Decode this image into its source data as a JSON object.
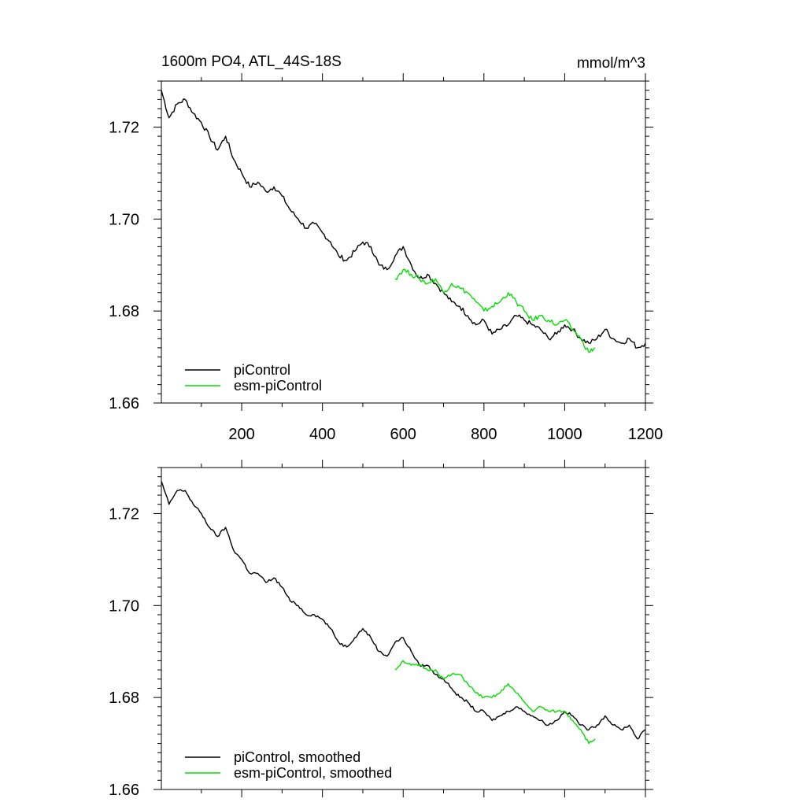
{
  "chart_data": [
    {
      "type": "line",
      "title_left": "1600m PO4, ATL_44S-18S",
      "title_right": "mmol/m^3",
      "xlabel": "",
      "ylabel": "",
      "xlim": [
        1,
        1200
      ],
      "ylim": [
        1.66,
        1.73
      ],
      "x_ticks": [
        200,
        400,
        600,
        800,
        1000,
        1200
      ],
      "y_ticks": [
        1.66,
        1.68,
        1.7,
        1.72
      ],
      "y_tick_labels": [
        "1.66",
        "1.68",
        "1.70",
        "1.72"
      ],
      "x_tick_labels": [
        "200",
        "400",
        "600",
        "800",
        "1000",
        "1200"
      ],
      "legend_position": "bottom-left",
      "series": [
        {
          "name": "piControl",
          "color": "#000000",
          "x": [
            1,
            20,
            40,
            60,
            80,
            100,
            120,
            140,
            160,
            180,
            200,
            220,
            240,
            260,
            280,
            300,
            320,
            340,
            360,
            380,
            400,
            420,
            440,
            460,
            480,
            500,
            520,
            540,
            560,
            580,
            600,
            620,
            640,
            660,
            680,
            700,
            720,
            740,
            760,
            780,
            800,
            820,
            840,
            860,
            880,
            900,
            920,
            940,
            960,
            980,
            1000,
            1020,
            1040,
            1060,
            1080,
            1100,
            1120,
            1140,
            1160,
            1180,
            1200
          ],
          "values": [
            1.728,
            1.722,
            1.725,
            1.726,
            1.723,
            1.721,
            1.718,
            1.715,
            1.718,
            1.713,
            1.71,
            1.707,
            1.708,
            1.706,
            1.707,
            1.705,
            1.702,
            1.7,
            1.698,
            1.699,
            1.697,
            1.695,
            1.692,
            1.691,
            1.693,
            1.695,
            1.694,
            1.69,
            1.689,
            1.692,
            1.694,
            1.69,
            1.687,
            1.688,
            1.686,
            1.684,
            1.682,
            1.681,
            1.679,
            1.677,
            1.678,
            1.675,
            1.676,
            1.677,
            1.679,
            1.678,
            1.677,
            1.676,
            1.674,
            1.675,
            1.677,
            1.676,
            1.674,
            1.673,
            1.674,
            1.676,
            1.674,
            1.673,
            1.674,
            1.672,
            1.673
          ]
        },
        {
          "name": "esm-piControl",
          "color": "#00e000",
          "x": [
            580,
            600,
            620,
            640,
            660,
            680,
            700,
            720,
            740,
            760,
            780,
            800,
            820,
            840,
            860,
            880,
            900,
            920,
            940,
            960,
            980,
            1000,
            1020,
            1040,
            1060,
            1075
          ],
          "values": [
            1.687,
            1.689,
            1.688,
            1.687,
            1.686,
            1.687,
            1.684,
            1.686,
            1.685,
            1.684,
            1.682,
            1.68,
            1.681,
            1.682,
            1.684,
            1.682,
            1.68,
            1.678,
            1.679,
            1.678,
            1.677,
            1.678,
            1.676,
            1.674,
            1.671,
            1.672
          ]
        }
      ]
    },
    {
      "type": "line",
      "title_left": "",
      "title_right": "",
      "xlabel": "",
      "ylabel": "",
      "xlim": [
        1,
        1200
      ],
      "ylim": [
        1.66,
        1.73
      ],
      "x_ticks": [
        200,
        400,
        600,
        800,
        1000,
        1200
      ],
      "y_ticks": [
        1.66,
        1.68,
        1.7,
        1.72
      ],
      "y_tick_labels": [
        "1.66",
        "1.68",
        "1.70",
        "1.72"
      ],
      "x_tick_labels": [],
      "legend_position": "bottom-left",
      "series": [
        {
          "name": "piControl, smoothed",
          "color": "#000000",
          "x": [
            1,
            20,
            40,
            60,
            80,
            100,
            120,
            140,
            160,
            180,
            200,
            220,
            240,
            260,
            280,
            300,
            320,
            340,
            360,
            380,
            400,
            420,
            440,
            460,
            480,
            500,
            520,
            540,
            560,
            580,
            600,
            620,
            640,
            660,
            680,
            700,
            720,
            740,
            760,
            780,
            800,
            820,
            840,
            860,
            880,
            900,
            920,
            940,
            960,
            980,
            1000,
            1020,
            1040,
            1060,
            1080,
            1100,
            1120,
            1140,
            1160,
            1180,
            1200
          ],
          "values": [
            1.727,
            1.722,
            1.725,
            1.725,
            1.722,
            1.72,
            1.717,
            1.715,
            1.717,
            1.712,
            1.71,
            1.707,
            1.707,
            1.705,
            1.706,
            1.704,
            1.701,
            1.7,
            1.698,
            1.698,
            1.697,
            1.695,
            1.692,
            1.691,
            1.693,
            1.695,
            1.693,
            1.69,
            1.689,
            1.692,
            1.693,
            1.69,
            1.687,
            1.687,
            1.685,
            1.684,
            1.682,
            1.68,
            1.679,
            1.677,
            1.677,
            1.675,
            1.676,
            1.677,
            1.678,
            1.677,
            1.676,
            1.675,
            1.674,
            1.675,
            1.677,
            1.676,
            1.674,
            1.673,
            1.674,
            1.676,
            1.674,
            1.673,
            1.674,
            1.671,
            1.673
          ]
        },
        {
          "name": "esm-piControl, smoothed",
          "color": "#00e000",
          "x": [
            580,
            600,
            620,
            640,
            660,
            680,
            700,
            720,
            740,
            760,
            780,
            800,
            820,
            840,
            860,
            880,
            900,
            920,
            940,
            960,
            980,
            1000,
            1020,
            1040,
            1060,
            1075
          ],
          "values": [
            1.686,
            1.688,
            1.687,
            1.687,
            1.686,
            1.686,
            1.684,
            1.685,
            1.685,
            1.683,
            1.681,
            1.68,
            1.68,
            1.681,
            1.683,
            1.681,
            1.679,
            1.677,
            1.678,
            1.677,
            1.677,
            1.677,
            1.675,
            1.673,
            1.67,
            1.671
          ]
        }
      ]
    }
  ]
}
